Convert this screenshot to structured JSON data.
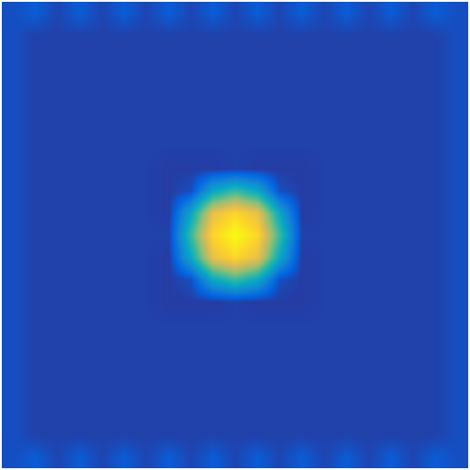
{
  "chart_data": {
    "type": "heatmap",
    "tick_labels": false,
    "zlim": [
      0,
      1
    ],
    "z": [
      [
        0.08,
        0.11,
        0.06,
        0.11,
        0.06,
        0.11,
        0.06,
        0.11,
        0.06,
        0.11,
        0.06,
        0.11,
        0.06,
        0.11,
        0.06,
        0.11,
        0.06,
        0.11,
        0.06,
        0.11,
        0.08
      ],
      [
        0.08,
        0.05,
        0.05,
        0.05,
        0.05,
        0.05,
        0.05,
        0.05,
        0.05,
        0.05,
        0.05,
        0.05,
        0.05,
        0.05,
        0.05,
        0.05,
        0.05,
        0.05,
        0.05,
        0.05,
        0.08
      ],
      [
        0.08,
        0.05,
        0.05,
        0.05,
        0.05,
        0.05,
        0.05,
        0.05,
        0.05,
        0.05,
        0.05,
        0.05,
        0.05,
        0.05,
        0.05,
        0.05,
        0.05,
        0.05,
        0.05,
        0.05,
        0.08
      ],
      [
        0.08,
        0.05,
        0.05,
        0.05,
        0.05,
        0.05,
        0.05,
        0.05,
        0.05,
        0.05,
        0.05,
        0.05,
        0.05,
        0.05,
        0.05,
        0.05,
        0.05,
        0.05,
        0.05,
        0.05,
        0.08
      ],
      [
        0.08,
        0.05,
        0.05,
        0.05,
        0.05,
        0.05,
        0.05,
        0.05,
        0.05,
        0.05,
        0.05,
        0.05,
        0.05,
        0.05,
        0.05,
        0.05,
        0.05,
        0.05,
        0.05,
        0.05,
        0.08
      ],
      [
        0.08,
        0.05,
        0.05,
        0.05,
        0.05,
        0.05,
        0.05,
        0.05,
        0.05,
        0.05,
        0.05,
        0.05,
        0.05,
        0.05,
        0.05,
        0.05,
        0.05,
        0.05,
        0.05,
        0.05,
        0.08
      ],
      [
        0.08,
        0.05,
        0.05,
        0.05,
        0.05,
        0.05,
        0.05,
        0.05,
        0.05,
        0.05,
        0.05,
        0.05,
        0.05,
        0.05,
        0.05,
        0.05,
        0.05,
        0.05,
        0.05,
        0.05,
        0.08
      ],
      [
        0.08,
        0.05,
        0.05,
        0.05,
        0.05,
        0.05,
        0.05,
        0.04,
        0.04,
        0.04,
        0.05,
        0.04,
        0.04,
        0.04,
        0.05,
        0.05,
        0.05,
        0.05,
        0.05,
        0.05,
        0.08
      ],
      [
        0.08,
        0.05,
        0.05,
        0.05,
        0.05,
        0.05,
        0.05,
        0.04,
        0.08,
        0.38,
        0.5,
        0.38,
        0.08,
        0.04,
        0.05,
        0.05,
        0.05,
        0.05,
        0.05,
        0.05,
        0.08
      ],
      [
        0.08,
        0.05,
        0.05,
        0.05,
        0.05,
        0.05,
        0.05,
        0.04,
        0.38,
        0.8,
        0.9,
        0.8,
        0.38,
        0.04,
        0.05,
        0.05,
        0.05,
        0.05,
        0.05,
        0.05,
        0.08
      ],
      [
        0.08,
        0.05,
        0.05,
        0.05,
        0.05,
        0.05,
        0.05,
        0.05,
        0.5,
        0.9,
        1.0,
        0.9,
        0.5,
        0.05,
        0.05,
        0.05,
        0.05,
        0.05,
        0.05,
        0.05,
        0.08
      ],
      [
        0.08,
        0.05,
        0.05,
        0.05,
        0.05,
        0.05,
        0.05,
        0.04,
        0.38,
        0.8,
        0.9,
        0.8,
        0.38,
        0.04,
        0.05,
        0.05,
        0.05,
        0.05,
        0.05,
        0.05,
        0.08
      ],
      [
        0.08,
        0.05,
        0.05,
        0.05,
        0.05,
        0.05,
        0.05,
        0.04,
        0.08,
        0.38,
        0.5,
        0.38,
        0.08,
        0.04,
        0.05,
        0.05,
        0.05,
        0.05,
        0.05,
        0.05,
        0.08
      ],
      [
        0.08,
        0.05,
        0.05,
        0.05,
        0.05,
        0.05,
        0.05,
        0.04,
        0.04,
        0.04,
        0.05,
        0.04,
        0.04,
        0.04,
        0.05,
        0.05,
        0.05,
        0.05,
        0.05,
        0.05,
        0.08
      ],
      [
        0.08,
        0.05,
        0.05,
        0.05,
        0.05,
        0.05,
        0.05,
        0.05,
        0.05,
        0.05,
        0.05,
        0.05,
        0.05,
        0.05,
        0.05,
        0.05,
        0.05,
        0.05,
        0.05,
        0.05,
        0.08
      ],
      [
        0.08,
        0.05,
        0.05,
        0.05,
        0.05,
        0.05,
        0.05,
        0.05,
        0.05,
        0.05,
        0.05,
        0.05,
        0.05,
        0.05,
        0.05,
        0.05,
        0.05,
        0.05,
        0.05,
        0.05,
        0.08
      ],
      [
        0.08,
        0.05,
        0.05,
        0.05,
        0.05,
        0.05,
        0.05,
        0.05,
        0.05,
        0.05,
        0.05,
        0.05,
        0.05,
        0.05,
        0.05,
        0.05,
        0.05,
        0.05,
        0.05,
        0.05,
        0.08
      ],
      [
        0.08,
        0.05,
        0.05,
        0.05,
        0.05,
        0.05,
        0.05,
        0.05,
        0.05,
        0.05,
        0.05,
        0.05,
        0.05,
        0.05,
        0.05,
        0.05,
        0.05,
        0.05,
        0.05,
        0.05,
        0.08
      ],
      [
        0.08,
        0.05,
        0.05,
        0.05,
        0.05,
        0.05,
        0.05,
        0.05,
        0.05,
        0.05,
        0.05,
        0.05,
        0.05,
        0.05,
        0.05,
        0.05,
        0.05,
        0.05,
        0.05,
        0.05,
        0.08
      ],
      [
        0.08,
        0.05,
        0.05,
        0.05,
        0.05,
        0.05,
        0.05,
        0.05,
        0.05,
        0.05,
        0.05,
        0.05,
        0.05,
        0.05,
        0.05,
        0.05,
        0.05,
        0.05,
        0.05,
        0.05,
        0.08
      ],
      [
        0.08,
        0.11,
        0.06,
        0.11,
        0.06,
        0.11,
        0.06,
        0.11,
        0.06,
        0.11,
        0.06,
        0.11,
        0.06,
        0.11,
        0.06,
        0.11,
        0.06,
        0.11,
        0.06,
        0.11,
        0.08
      ]
    ]
  }
}
